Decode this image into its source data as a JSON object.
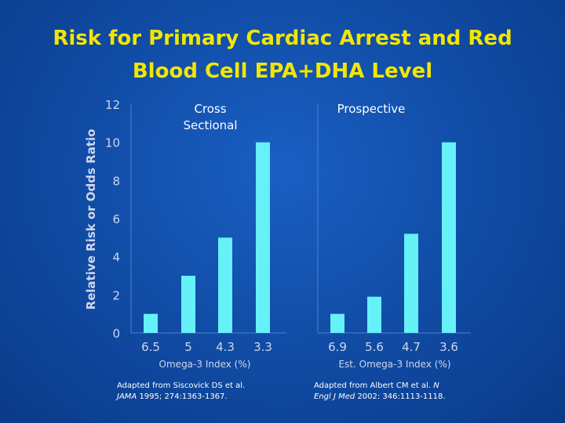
{
  "title": {
    "line1": "Risk for Primary Cardiac Arrest and Red",
    "line2": "Blood Cell EPA+DHA Level"
  },
  "colors": {
    "background": "#114ea8",
    "title": "#f2e600",
    "bar": "#66f0f8",
    "axis_label": "#d0d6ee",
    "text": "#ffffff"
  },
  "chart_data": [
    {
      "type": "bar",
      "title": "Cross Sectional",
      "title_lines": [
        "Cross",
        "Sectional"
      ],
      "categories": [
        "6.5",
        "5",
        "4.3",
        "3.3"
      ],
      "values": [
        1,
        3,
        5,
        10
      ],
      "xlabel": "Omega-3 Index (%)",
      "ylabel": "Relative Risk or Odds Ratio",
      "ylim": [
        0,
        12
      ],
      "yticks": [
        0,
        2,
        4,
        6,
        8,
        10,
        12
      ],
      "grid": false
    },
    {
      "type": "bar",
      "title": "Prospective",
      "title_lines": [
        "Prospective"
      ],
      "categories": [
        "6.9",
        "5.6",
        "4.7",
        "3.6"
      ],
      "values": [
        1,
        1.9,
        5.2,
        10
      ],
      "xlabel": "Est. Omega-3 Index (%)",
      "ylim": [
        0,
        12
      ],
      "grid": false
    }
  ],
  "citations": [
    {
      "line1": "Adapted from Siscovick DS et al.",
      "journal": "JAMA",
      "ref": " 1995; 274:1363-1367."
    },
    {
      "line1_prefix": "Adapted from Albert CM et al. ",
      "line1_journal": "N",
      "journal": "Engl J Med",
      "ref": " 2002: 346:1113-1118."
    }
  ]
}
